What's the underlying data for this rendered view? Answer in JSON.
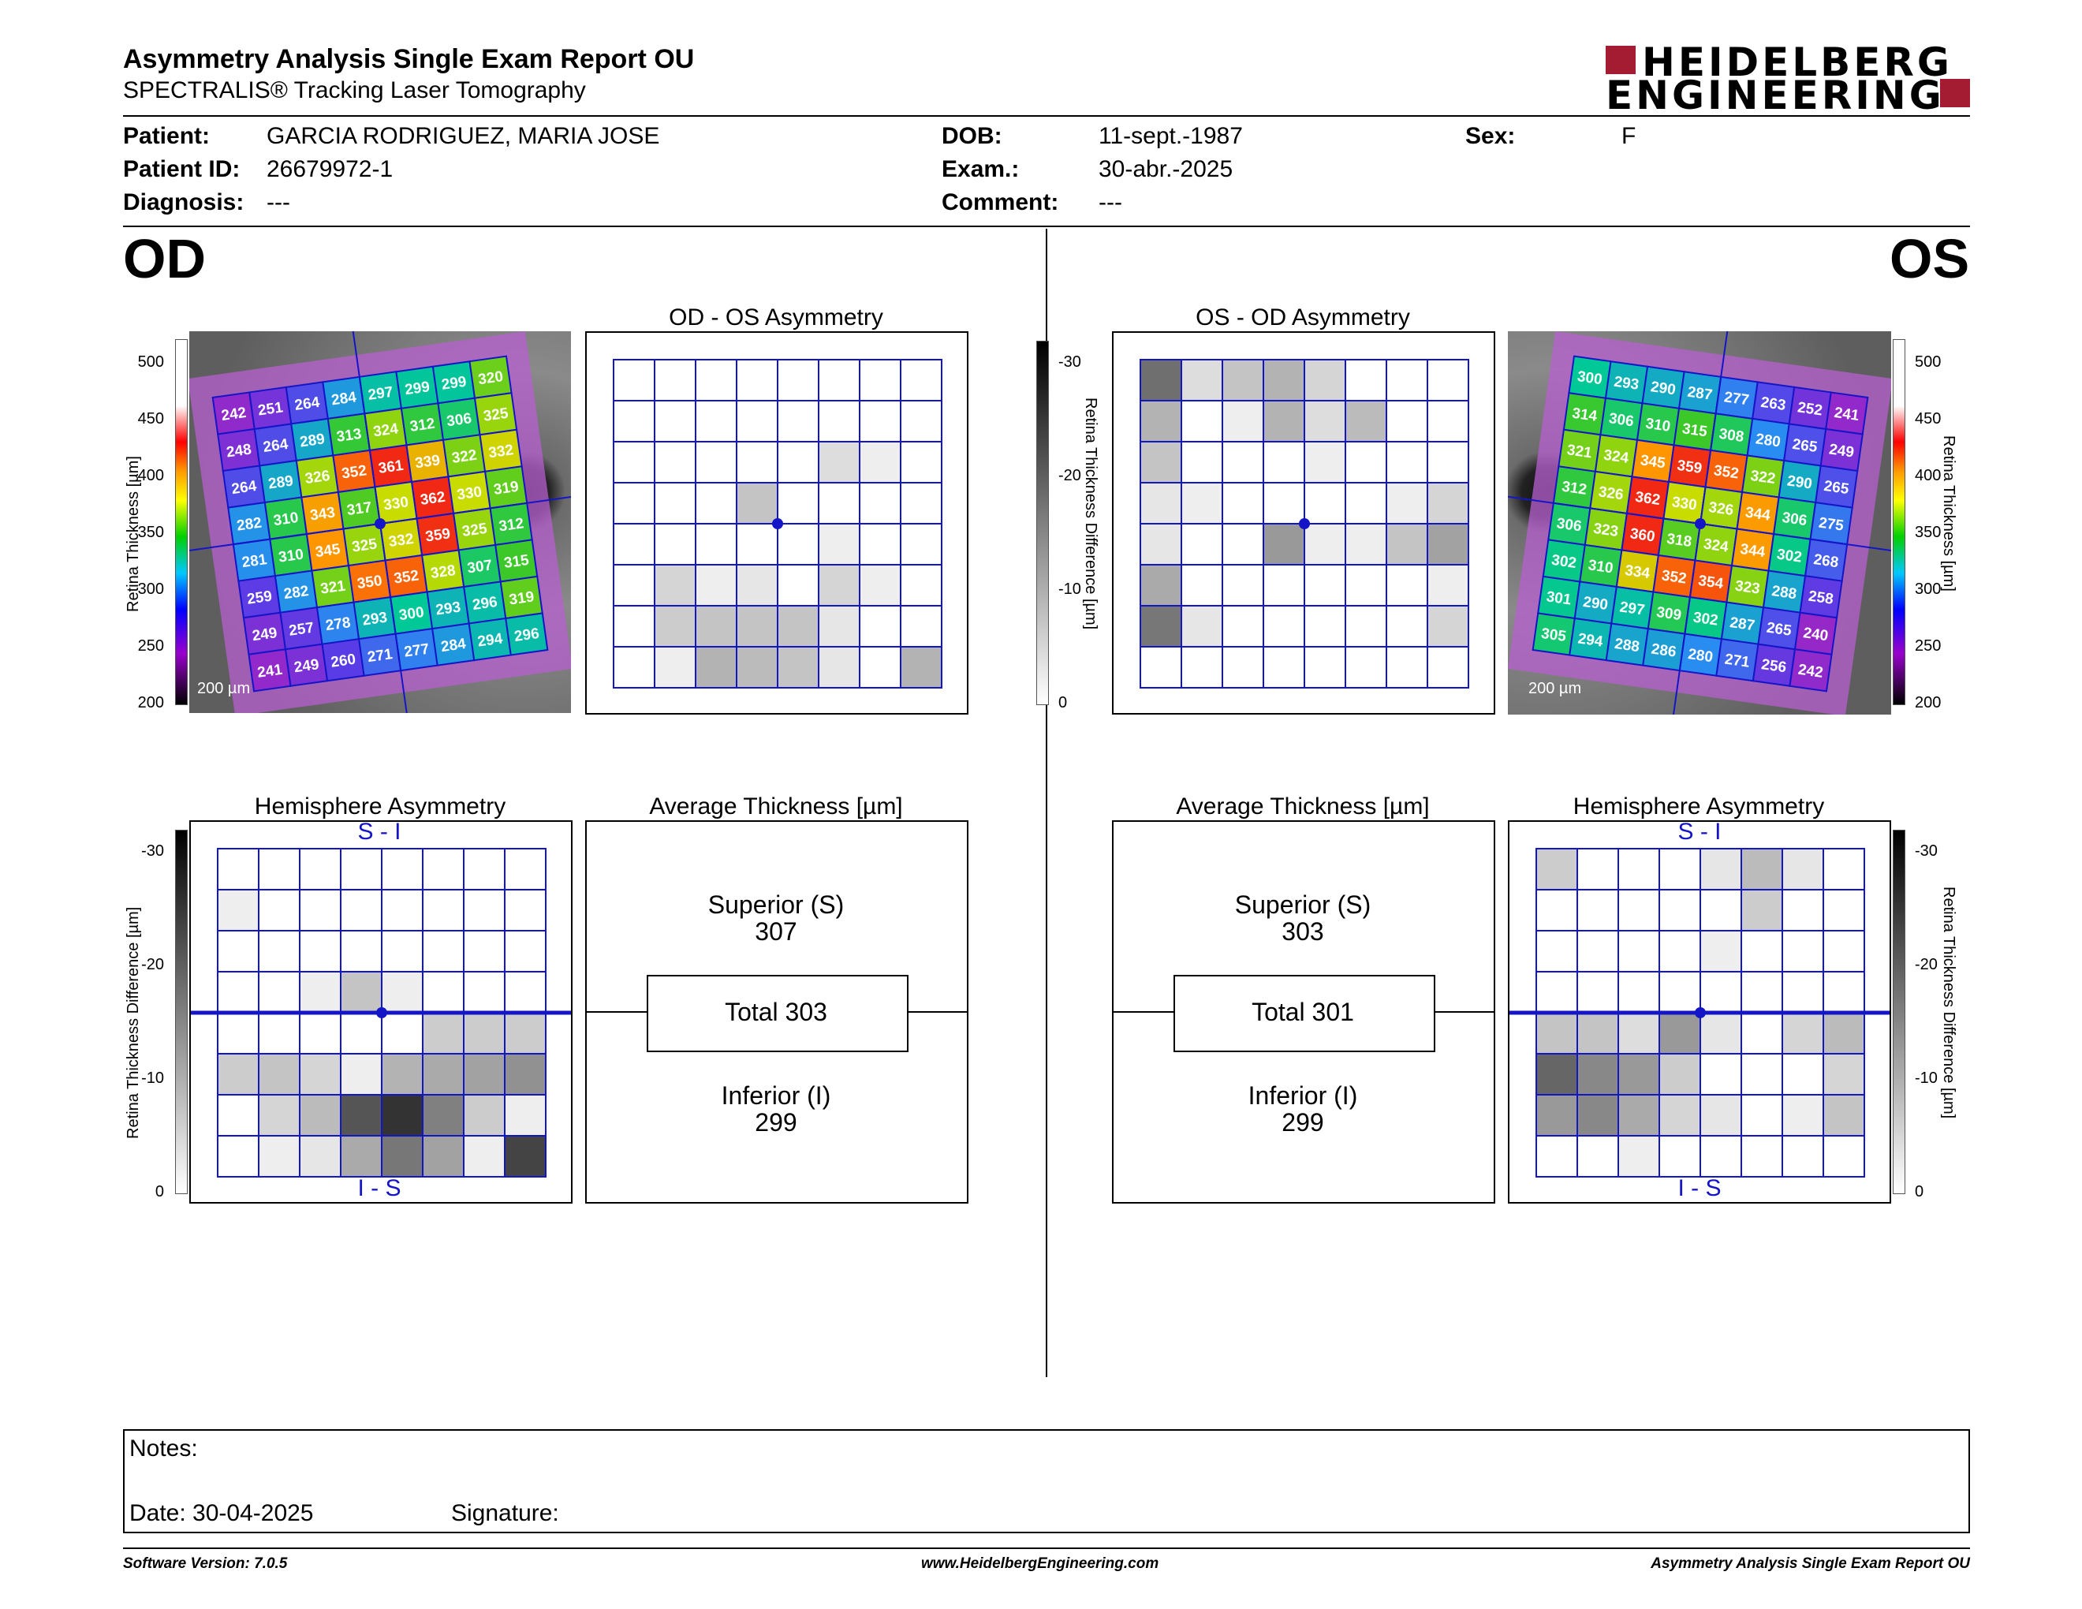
{
  "header": {
    "title": "Asymmetry Analysis Single Exam Report OU",
    "subtitle": "SPECTRALIS® Tracking Laser Tomography",
    "logo_line1": "HEIDELBERG",
    "logo_line2": "ENGINEERING",
    "brand_color": "#a31c32"
  },
  "patient": {
    "patient_label": "Patient:",
    "patient": "GARCIA RODRIGUEZ, MARIA JOSE",
    "id_label": "Patient ID:",
    "id": "26679972-1",
    "diagnosis_label": "Diagnosis:",
    "diagnosis": "---",
    "dob_label": "DOB:",
    "dob": "11-sept.-1987",
    "exam_label": "Exam.:",
    "exam": "30-abr.-2025",
    "comment_label": "Comment:",
    "comment": "---",
    "sex_label": "Sex:",
    "sex": "F"
  },
  "od": {
    "eye": "OD",
    "asym_title": "OD - OS Asymmetry",
    "hemi_title": "Hemisphere Asymmetry",
    "hemi_top": "S - I",
    "hemi_bottom": "I - S",
    "avg_title": "Average Thickness [µm]",
    "superior_label": "Superior (S)",
    "superior": "307",
    "total": "Total 303",
    "inferior_label": "Inferior (I)",
    "inferior": "299",
    "scale_bar": "200 µm",
    "thickness_grid": [
      [
        "242",
        "251",
        "264",
        "284",
        "297",
        "299",
        "299",
        "320"
      ],
      [
        "248",
        "264",
        "289",
        "313",
        "324",
        "312",
        "306",
        "325"
      ],
      [
        "264",
        "289",
        "326",
        "352",
        "361",
        "339",
        "322",
        "332"
      ],
      [
        "282",
        "310",
        "343",
        "317",
        "330",
        "362",
        "330",
        "319"
      ],
      [
        "281",
        "310",
        "345",
        "325",
        "332",
        "359",
        "325",
        "312"
      ],
      [
        "259",
        "282",
        "321",
        "350",
        "352",
        "328",
        "307",
        "315"
      ],
      [
        "249",
        "257",
        "278",
        "293",
        "300",
        "293",
        "296",
        "319"
      ],
      [
        "241",
        "249",
        "260",
        "271",
        "277",
        "284",
        "294",
        "296"
      ]
    ],
    "asym_grid": [
      [
        0,
        0,
        0,
        0,
        0,
        0,
        0,
        0
      ],
      [
        0,
        0,
        0,
        0,
        0,
        0,
        0,
        0
      ],
      [
        0,
        0,
        0,
        0,
        0,
        4,
        2,
        0
      ],
      [
        0,
        0,
        0,
        7,
        0,
        0,
        0,
        0
      ],
      [
        0,
        0,
        0,
        0,
        0,
        2,
        0,
        0
      ],
      [
        0,
        5,
        2,
        3,
        0,
        5,
        2,
        0
      ],
      [
        0,
        6,
        7,
        7,
        7,
        3,
        0,
        0
      ],
      [
        0,
        2,
        9,
        8,
        7,
        3,
        0,
        9
      ]
    ],
    "hemi_grid": [
      [
        0,
        0,
        0,
        0,
        0,
        0,
        0,
        0
      ],
      [
        2,
        0,
        0,
        0,
        0,
        0,
        0,
        0
      ],
      [
        0,
        0,
        0,
        0,
        0,
        0,
        0,
        0
      ],
      [
        0,
        0,
        2,
        7,
        2,
        0,
        0,
        0
      ],
      [
        0,
        0,
        0,
        0,
        0,
        6,
        6,
        6
      ],
      [
        6,
        7,
        5,
        2,
        9,
        10,
        11,
        13
      ],
      [
        0,
        5,
        8,
        20,
        24,
        15,
        6,
        2
      ],
      [
        0,
        2,
        3,
        10,
        16,
        11,
        2,
        22
      ]
    ]
  },
  "os": {
    "eye": "OS",
    "asym_title": "OS - OD Asymmetry",
    "hemi_title": "Hemisphere Asymmetry",
    "hemi_top": "S - I",
    "hemi_bottom": "I - S",
    "avg_title": "Average Thickness [µm]",
    "superior_label": "Superior (S)",
    "superior": "303",
    "total": "Total 301",
    "inferior_label": "Inferior (I)",
    "inferior": "299",
    "scale_bar": "200 µm",
    "thickness_grid": [
      [
        "300",
        "293",
        "290",
        "287",
        "277",
        "263",
        "252",
        "241"
      ],
      [
        "314",
        "306",
        "310",
        "315",
        "308",
        "280",
        "265",
        "249"
      ],
      [
        "321",
        "324",
        "345",
        "359",
        "352",
        "322",
        "290",
        "265"
      ],
      [
        "312",
        "326",
        "362",
        "330",
        "326",
        "344",
        "306",
        "275"
      ],
      [
        "306",
        "323",
        "360",
        "318",
        "324",
        "344",
        "302",
        "268"
      ],
      [
        "302",
        "310",
        "334",
        "352",
        "354",
        "323",
        "288",
        "258"
      ],
      [
        "301",
        "290",
        "297",
        "309",
        "302",
        "287",
        "265",
        "240"
      ],
      [
        "305",
        "294",
        "288",
        "286",
        "280",
        "271",
        "256",
        "242"
      ]
    ],
    "asym_grid": [
      [
        17,
        4,
        7,
        9,
        5,
        0,
        0,
        0
      ],
      [
        9,
        0,
        2,
        9,
        4,
        8,
        0,
        0
      ],
      [
        7,
        0,
        0,
        0,
        2,
        0,
        0,
        0
      ],
      [
        3,
        2,
        0,
        0,
        0,
        0,
        2,
        5
      ],
      [
        3,
        0,
        0,
        12,
        2,
        2,
        7,
        11
      ],
      [
        10,
        0,
        0,
        0,
        0,
        0,
        0,
        2
      ],
      [
        16,
        3,
        0,
        0,
        0,
        0,
        0,
        5
      ],
      [
        0,
        0,
        0,
        0,
        0,
        0,
        0,
        0
      ]
    ],
    "hemi_grid": [
      [
        6,
        0,
        0,
        0,
        3,
        8,
        3,
        0
      ],
      [
        0,
        0,
        0,
        0,
        0,
        6,
        0,
        0
      ],
      [
        0,
        0,
        0,
        0,
        2,
        0,
        0,
        0
      ],
      [
        0,
        0,
        0,
        0,
        0,
        0,
        0,
        0
      ],
      [
        7,
        7,
        4,
        12,
        3,
        0,
        5,
        8
      ],
      [
        18,
        14,
        12,
        6,
        0,
        0,
        0,
        5
      ],
      [
        12,
        14,
        10,
        5,
        3,
        0,
        2,
        7
      ],
      [
        0,
        0,
        2,
        0,
        0,
        0,
        0,
        0
      ]
    ]
  },
  "scales": {
    "thickness_axis": "Retina Thickness [µm]",
    "thickness_ticks": [
      "500",
      "450",
      "400",
      "350",
      "300",
      "250",
      "200"
    ],
    "diff_axis": "Retina Thickness Difference [µm]",
    "diff_ticks": [
      "-30",
      "-20",
      "-10",
      "0"
    ]
  },
  "notes": {
    "notes_label": "Notes:",
    "date_label": "Date: 30-04-2025",
    "signature_label": "Signature:"
  },
  "footer": {
    "version": "Software Version: 7.0.5",
    "website": "www.HeidelbergEngineering.com",
    "report": "Asymmetry Analysis Single Exam Report OU"
  }
}
